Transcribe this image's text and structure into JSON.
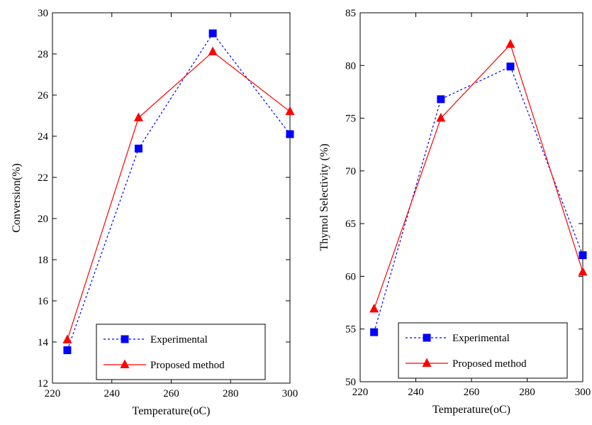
{
  "chart_data": [
    {
      "type": "line",
      "title": "",
      "xlabel": "Temperature(oC)",
      "ylabel": "Conversion(%)",
      "xlim": [
        220,
        300
      ],
      "ylim": [
        12,
        30
      ],
      "xticks": [
        220,
        240,
        260,
        280,
        300
      ],
      "yticks": [
        12,
        14,
        16,
        18,
        20,
        22,
        24,
        26,
        28,
        30
      ],
      "grid": false,
      "legend_position": "bottom-right",
      "series": [
        {
          "name": "Experimental",
          "color": "#0000ff",
          "line_style": "dotted",
          "marker": "square",
          "x": [
            225,
            249,
            274,
            300
          ],
          "y": [
            13.6,
            23.4,
            29.0,
            24.1
          ]
        },
        {
          "name": "Proposed method",
          "color": "#ff0000",
          "line_style": "solid",
          "marker": "triangle",
          "x": [
            225,
            249,
            274,
            300
          ],
          "y": [
            14.1,
            24.9,
            28.1,
            25.2
          ]
        }
      ]
    },
    {
      "type": "line",
      "title": "",
      "xlabel": "Temperature(oC)",
      "ylabel": "Thymol Selectivity (%)",
      "xlim": [
        220,
        300
      ],
      "ylim": [
        50,
        85
      ],
      "xticks": [
        220,
        240,
        260,
        280,
        300
      ],
      "yticks": [
        50,
        55,
        60,
        65,
        70,
        75,
        80,
        85
      ],
      "grid": false,
      "legend_position": "bottom-right",
      "series": [
        {
          "name": "Experimental",
          "color": "#0000ff",
          "line_style": "dotted",
          "marker": "square",
          "x": [
            225,
            249,
            274,
            300
          ],
          "y": [
            54.7,
            76.8,
            79.9,
            62.0
          ]
        },
        {
          "name": "Proposed method",
          "color": "#ff0000",
          "line_style": "solid",
          "marker": "triangle",
          "x": [
            225,
            249,
            274,
            300
          ],
          "y": [
            56.9,
            75.0,
            82.0,
            60.4
          ]
        }
      ]
    }
  ]
}
